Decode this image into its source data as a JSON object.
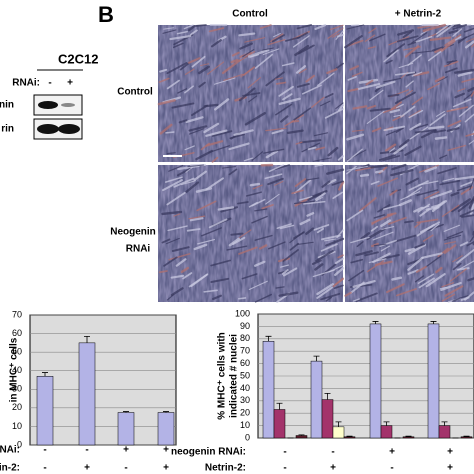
{
  "panel_label": "B",
  "blot": {
    "cell_line": "C2C12",
    "rnai_label": "RNAi:",
    "lanes": [
      "-",
      "+"
    ],
    "rows": [
      "nin",
      "rin"
    ]
  },
  "micrographs": {
    "columns": [
      "Control",
      "+ Netrin-2"
    ],
    "rows": [
      [
        "Control"
      ],
      [
        "Neogenin",
        "RNAi"
      ]
    ]
  },
  "chart_data": [
    {
      "type": "bar",
      "ylabel": "in MHC⁺ cells",
      "ylim": [
        0,
        70
      ],
      "yticks": [
        0,
        10,
        20,
        30,
        40,
        50,
        60,
        70
      ],
      "grid": true,
      "values": [
        37,
        55,
        17.5,
        17.5
      ],
      "errors": [
        2,
        3.5,
        0.5,
        0.5
      ],
      "color": "#b3b3e6",
      "rows": [
        {
          "label": "RNAi:",
          "values": [
            "-",
            "-",
            "+",
            "+"
          ]
        },
        {
          "label": "trin-2:",
          "values": [
            "-",
            "+",
            "-",
            "+"
          ]
        }
      ]
    },
    {
      "type": "grouped-bar",
      "ylabel": [
        "% MHC⁺ cells with",
        "indicated # nuclei"
      ],
      "ylim": [
        0,
        100
      ],
      "yticks": [
        0,
        10,
        20,
        30,
        40,
        50,
        60,
        70,
        80,
        90,
        100
      ],
      "grid": true,
      "series": [
        {
          "color": "#b3b3e6",
          "values": [
            78,
            62,
            92,
            92
          ],
          "errors": [
            4,
            4,
            2,
            2
          ]
        },
        {
          "color": "#a3336b",
          "values": [
            23,
            31,
            10,
            10
          ],
          "errors": [
            5,
            5,
            3,
            3
          ]
        },
        {
          "color": "#ffffcc",
          "values": [
            0,
            9,
            0,
            0
          ],
          "errors": [
            0,
            4,
            0,
            0
          ]
        },
        {
          "color": "#5a1a2a",
          "values": [
            2,
            1,
            1,
            1
          ],
          "errors": [
            0.5,
            0.5,
            0.5,
            0.5
          ]
        }
      ],
      "rows": [
        {
          "label": "neogenin RNAi:",
          "values": [
            "-",
            "-",
            "+",
            "+"
          ]
        },
        {
          "label": "Netrin-2:",
          "values": [
            "-",
            "+",
            "-",
            "+"
          ]
        }
      ]
    }
  ]
}
